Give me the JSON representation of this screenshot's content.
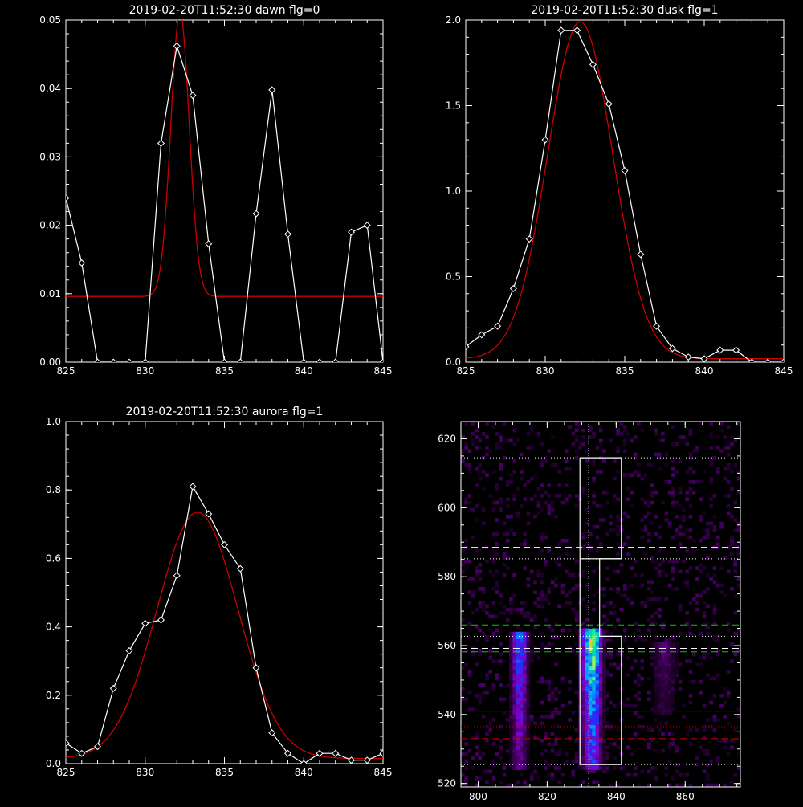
{
  "chart_data": [
    {
      "type": "line",
      "title": "2019-02-20T11:52:30 dawn flg=0",
      "xlim": [
        825,
        845
      ],
      "ylim": [
        0,
        0.05
      ],
      "xticks": [
        825,
        830,
        835,
        840,
        845
      ],
      "xtick_labels": [
        "825",
        "830",
        "835",
        "840",
        "845"
      ],
      "yticks": [
        0.0,
        0.01,
        0.02,
        0.03,
        0.04,
        0.05
      ],
      "ytick_labels": [
        "0.00",
        "0.01",
        "0.02",
        "0.03",
        "0.04",
        "0.05"
      ],
      "series": [
        {
          "kind": "data",
          "color": "#ffffff",
          "marker": "diamond",
          "x": [
            825,
            826,
            827,
            828,
            829,
            830,
            831,
            832,
            833,
            834,
            835,
            836,
            837,
            838,
            839,
            840,
            841,
            842,
            843,
            844,
            845
          ],
          "y": [
            0.024,
            0.0145,
            0,
            0,
            0,
            0,
            0.032,
            0.0462,
            0.039,
            0.0173,
            0,
            0,
            0.0217,
            0.0398,
            0.0187,
            0,
            0,
            0,
            0.019,
            0.02,
            0
          ]
        },
        {
          "kind": "fit",
          "color": "#cc0000",
          "model": "gaussian",
          "amplitude": 0.0415,
          "center": 832.2,
          "sigma": 0.58,
          "offset": 0.0096
        }
      ]
    },
    {
      "type": "line",
      "title": "2019-02-20T11:52:30 dusk flg=1",
      "xlim": [
        825,
        845
      ],
      "ylim": [
        0,
        2.0
      ],
      "xticks": [
        825,
        830,
        835,
        840,
        845
      ],
      "xtick_labels": [
        "825",
        "830",
        "835",
        "840",
        "845"
      ],
      "yticks": [
        0.0,
        0.5,
        1.0,
        1.5,
        2.0
      ],
      "ytick_labels": [
        "0.0",
        "0.5",
        "1.0",
        "1.5",
        "2.0"
      ],
      "series": [
        {
          "kind": "data",
          "color": "#ffffff",
          "marker": "diamond",
          "x": [
            825,
            826,
            827,
            828,
            829,
            830,
            831,
            832,
            833,
            834,
            835,
            836,
            837,
            838,
            839,
            840,
            841,
            842,
            843,
            844,
            845
          ],
          "y": [
            0.09,
            0.16,
            0.21,
            0.43,
            0.72,
            1.3,
            1.94,
            1.94,
            1.74,
            1.51,
            1.12,
            0.63,
            0.21,
            0.08,
            0.03,
            0.02,
            0.07,
            0.07,
            0.0,
            0.0,
            0.0
          ]
        },
        {
          "kind": "fit",
          "color": "#cc0000",
          "model": "gaussian",
          "amplitude": 1.97,
          "center": 832.2,
          "sigma": 2.05,
          "offset": 0.02
        }
      ]
    },
    {
      "type": "line",
      "title": "2019-02-20T11:52:30 aurora flg=1",
      "xlim": [
        825,
        845
      ],
      "ylim": [
        0,
        1.0
      ],
      "xticks": [
        825,
        830,
        835,
        840,
        845
      ],
      "xtick_labels": [
        "825",
        "830",
        "835",
        "840",
        "845"
      ],
      "yticks": [
        0.0,
        0.2,
        0.4,
        0.6,
        0.8,
        1.0
      ],
      "ytick_labels": [
        "0.0",
        "0.2",
        "0.4",
        "0.6",
        "0.8",
        "1.0"
      ],
      "series": [
        {
          "kind": "data",
          "color": "#ffffff",
          "marker": "diamond",
          "x": [
            825,
            826,
            827,
            828,
            829,
            830,
            831,
            832,
            833,
            834,
            835,
            836,
            837,
            838,
            839,
            840,
            841,
            842,
            843,
            844,
            845
          ],
          "y": [
            0.06,
            0.03,
            0.05,
            0.22,
            0.33,
            0.41,
            0.42,
            0.55,
            0.81,
            0.73,
            0.64,
            0.57,
            0.28,
            0.09,
            0.03,
            0.0,
            0.03,
            0.03,
            0.01,
            0.01,
            0.03
          ]
        },
        {
          "kind": "fit",
          "color": "#cc0000",
          "model": "gaussian",
          "amplitude": 0.72,
          "center": 833.3,
          "sigma": 2.55,
          "offset": 0.015
        }
      ]
    },
    {
      "type": "heatmap",
      "title": "",
      "xlim": [
        795,
        876
      ],
      "ylim": [
        519,
        625
      ],
      "xticks": [
        800,
        820,
        840,
        860
      ],
      "xtick_labels": [
        "800",
        "820",
        "840",
        "860"
      ],
      "yticks": [
        520,
        540,
        560,
        580,
        600,
        620
      ],
      "ytick_labels": [
        "520",
        "540",
        "560",
        "580",
        "600",
        "620"
      ],
      "blobs": [
        {
          "x": 812,
          "y0": 524,
          "y1": 563,
          "peak": 0.55,
          "width": 2.2
        },
        {
          "x": 833,
          "y0": 524,
          "y1": 564,
          "peak": 1.0,
          "width": 2.6
        },
        {
          "x": 854,
          "y0": 540,
          "y1": 560,
          "peak": 0.22,
          "width": 3.2
        }
      ],
      "colormap": [
        "#000000",
        "#3a0050",
        "#8000c8",
        "#2030ff",
        "#00a0ff",
        "#00e8a0",
        "#e8ff30",
        "#ff3000"
      ],
      "vertical_line": {
        "x": 832,
        "color": "#c0a0ff",
        "style": "dotted"
      },
      "h_lines": [
        {
          "y": 614.5,
          "color": "#ffffff",
          "style": "dotted"
        },
        {
          "y": 588.5,
          "color": "#ffffff",
          "style": "dashed"
        },
        {
          "y": 585.2,
          "color": "#ffffff",
          "style": "dotted"
        },
        {
          "y": 566.0,
          "color": "#00cc00",
          "style": "dashed"
        },
        {
          "y": 562.7,
          "color": "#ffffff",
          "style": "dotted"
        },
        {
          "y": 559.2,
          "color": "#ffffff",
          "style": "dashed"
        },
        {
          "y": 558.2,
          "color": "#00cc00",
          "style": "dashed"
        },
        {
          "y": 541.0,
          "color": "#cc0000",
          "style": "solid"
        },
        {
          "y": 536.5,
          "color": "#cc0000",
          "style": "dotted"
        },
        {
          "y": 533.0,
          "color": "#cc0000",
          "style": "dashed"
        },
        {
          "y": 525.5,
          "color": "#ffffff",
          "style": "dotted"
        }
      ],
      "box_outline": [
        [
          829.5,
          614.5
        ],
        [
          841.5,
          614.5
        ],
        [
          841.5,
          585.2
        ],
        [
          835.2,
          585.2
        ],
        [
          835.2,
          562.7
        ],
        [
          841.5,
          562.7
        ],
        [
          841.5,
          525.5
        ],
        [
          829.5,
          525.5
        ],
        [
          829.5,
          585.2
        ],
        [
          829.5,
          614.5
        ]
      ],
      "box_outline_extra": [
        [
          829.5,
          585.2
        ],
        [
          841.5,
          585.2
        ]
      ]
    }
  ]
}
